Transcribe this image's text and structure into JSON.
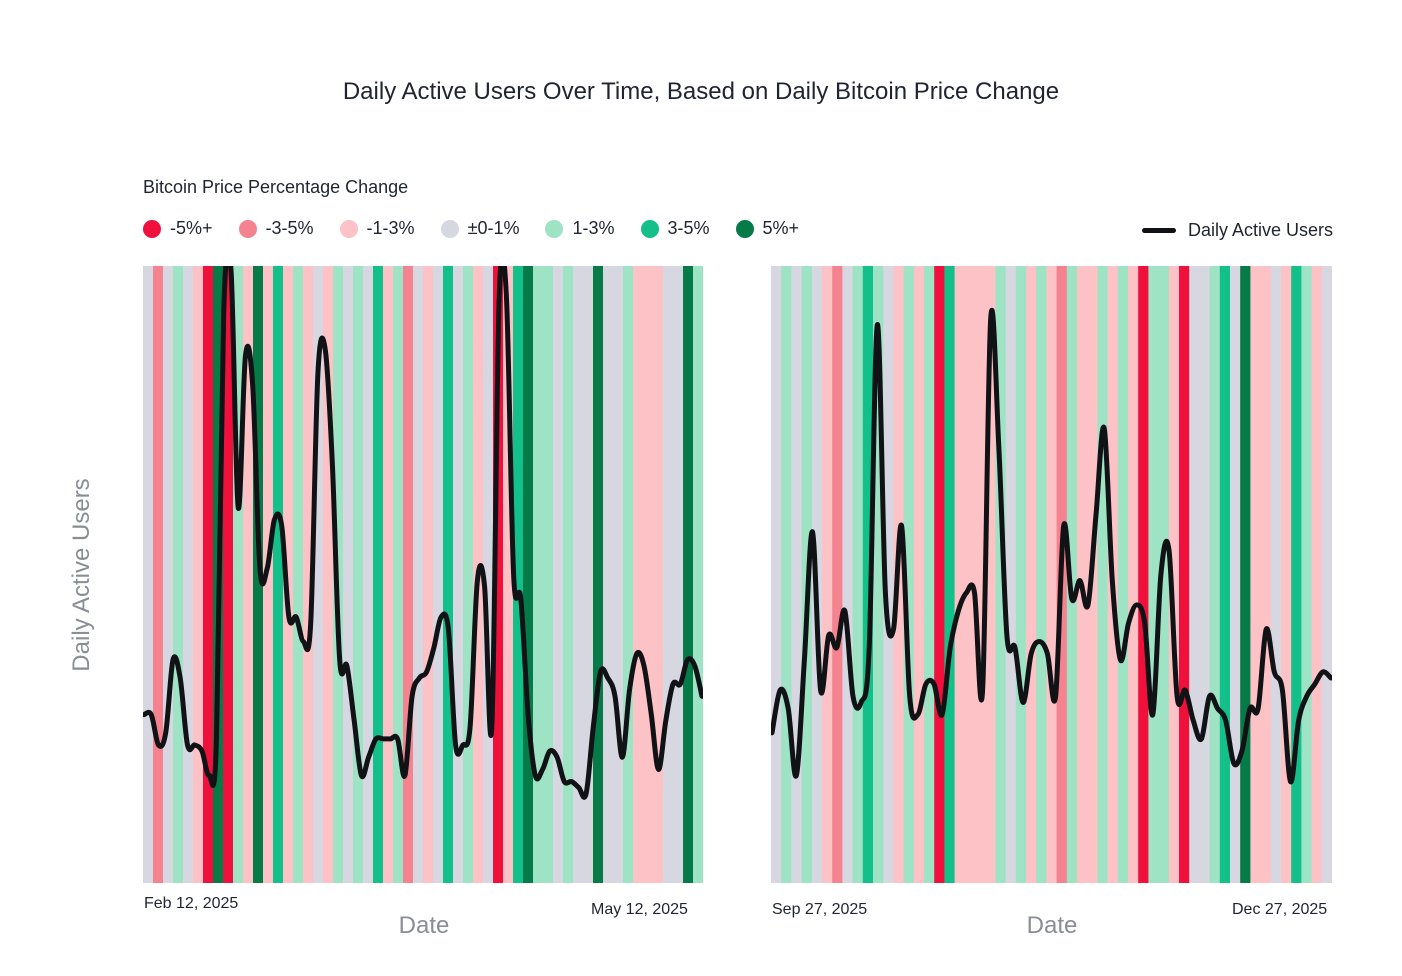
{
  "title": "Daily Active Users Over Time, Based on Daily Bitcoin Price Change",
  "legend": {
    "title": "Bitcoin Price Percentage Change",
    "categories": [
      {
        "label": "-5%+",
        "color": "#f0103c"
      },
      {
        "label": "-3-5%",
        "color": "#f4838f"
      },
      {
        "label": "-1-3%",
        "color": "#fdc2c6"
      },
      {
        "label": "±0-1%",
        "color": "#d6d7e1"
      },
      {
        "label": "1-3%",
        "color": "#9ee3c4"
      },
      {
        "label": "3-5%",
        "color": "#14c08a"
      },
      {
        "label": "5%+",
        "color": "#067a47"
      }
    ],
    "line_label": "Daily Active Users",
    "line_color": "#111216"
  },
  "axes": {
    "ylabel": "Daily Active Users",
    "xlabel": "Date"
  },
  "chart_data": [
    {
      "type": "line",
      "panel": "left",
      "x_start": "Feb 12, 2025",
      "x_end": "May 12, 2025",
      "xlabel": "Date",
      "ylabel": "Daily Active Users",
      "ylim": [
        0,
        100
      ],
      "background_bands": [
        "neutral",
        "down3",
        "neutral",
        "up1",
        "neutral",
        "down1",
        "down5",
        "up5",
        "down5",
        "up1",
        "down1",
        "up5",
        "down1",
        "up3",
        "down1",
        "up1",
        "down1",
        "neutral",
        "down1",
        "up1",
        "neutral",
        "up1",
        "neutral",
        "up3",
        "down1",
        "up1",
        "down3",
        "neutral",
        "down1",
        "neutral",
        "up3",
        "neutral",
        "up1",
        "down1",
        "neutral",
        "down5",
        "down1",
        "up3",
        "up5",
        "up1",
        "up1",
        "neutral",
        "up1",
        "neutral",
        "neutral",
        "up5",
        "neutral",
        "neutral",
        "up1",
        "down1",
        "down1",
        "down1",
        "neutral",
        "neutral",
        "up5",
        "up1"
      ],
      "series": [
        {
          "name": "Daily Active Users",
          "values": [
            27,
            27,
            22,
            24,
            36,
            33,
            22,
            22,
            21,
            17,
            23,
            93,
            100,
            61,
            86,
            81,
            51,
            51,
            59,
            58,
            43,
            43,
            39,
            42,
            83,
            87,
            68,
            36,
            35,
            26,
            17,
            20,
            23,
            23,
            23,
            23,
            17,
            30,
            33,
            34,
            38,
            43,
            41,
            22,
            22,
            25,
            49,
            48,
            25,
            95,
            96,
            50,
            46,
            27,
            17,
            18,
            21,
            20,
            16,
            16,
            15,
            14,
            25,
            34,
            33,
            30,
            20,
            31,
            37,
            35,
            27,
            18,
            26,
            32,
            32,
            36,
            35,
            30
          ]
        }
      ]
    },
    {
      "type": "line",
      "panel": "right",
      "x_start": "Sep 27, 2025",
      "x_end": "Dec 27, 2025",
      "xlabel": "Date",
      "ylabel": "Daily Active Users",
      "ylim": [
        0,
        100
      ],
      "background_bands": [
        "neutral",
        "up1",
        "neutral",
        "up1",
        "neutral",
        "down1",
        "down3",
        "neutral",
        "up1",
        "up3",
        "up1",
        "neutral",
        "down1",
        "up1",
        "down1",
        "up1",
        "down5",
        "up3",
        "down1",
        "down1",
        "down1",
        "down1",
        "up1",
        "neutral",
        "up1",
        "down1",
        "up1",
        "down1",
        "down3",
        "up1",
        "down1",
        "down1",
        "up1",
        "down1",
        "up1",
        "down1",
        "down5",
        "up1",
        "up1",
        "down1",
        "down5",
        "neutral",
        "neutral",
        "up1",
        "up3",
        "neutral",
        "up5",
        "down1",
        "down1",
        "neutral",
        "down1",
        "up3",
        "up1",
        "down1",
        "neutral"
      ],
      "series": [
        {
          "name": "Daily Active Users",
          "values": [
            24,
            31,
            28,
            17,
            36,
            57,
            31,
            40,
            38,
            44,
            30,
            29,
            38,
            91,
            47,
            41,
            58,
            30,
            27,
            32,
            32,
            27,
            38,
            44,
            47,
            47,
            31,
            92,
            71,
            40,
            38,
            29,
            37,
            39,
            37,
            30,
            58,
            46,
            49,
            45,
            60,
            74,
            49,
            36,
            42,
            45,
            42,
            27,
            50,
            54,
            30,
            31,
            26,
            23,
            30,
            28,
            26,
            19,
            21,
            28,
            28,
            41,
            34,
            31,
            16,
            26,
            30,
            32,
            34,
            33
          ]
        }
      ]
    }
  ]
}
